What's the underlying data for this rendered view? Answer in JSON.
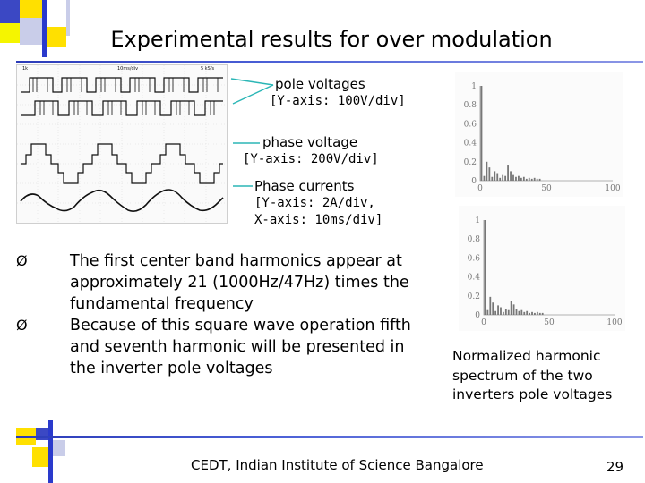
{
  "slide": {
    "title": "Experimental results for over modulation",
    "footer": "CEDT, Indian Institute of Science Bangalore",
    "page_number": "29"
  },
  "labels": {
    "pole_title": "pole voltages",
    "pole_axis": "[Y-axis: 100V/div]",
    "phase_title": "phase voltage",
    "phase_axis": "[Y-axis: 200V/div]",
    "current_title": "Phase currents",
    "current_axis_y": "[Y-axis: 2A/div,",
    "current_axis_x": "X-axis: 10ms/div]"
  },
  "bullets": [
    {
      "marker": "Ø",
      "text": "The first center band harmonics appear at approximately 21 (1000Hz/47Hz) times the fundamental frequency"
    },
    {
      "marker": "Ø",
      "text": "Because of this square wave operation fifth and seventh harmonic will be presented in the inverter pole voltages"
    }
  ],
  "caption": "Normalized harmonic spectrum of the two inverters pole voltages",
  "chart_data": [
    {
      "type": "bar",
      "ylim": [
        0,
        1
      ],
      "xlim": [
        0,
        100
      ],
      "yticks": [
        "0",
        "0.2",
        "0.4",
        "0.6",
        "0.8",
        "1"
      ],
      "xticks": [
        "0",
        "50",
        "100"
      ],
      "x": [
        1,
        3,
        5,
        7,
        9,
        11,
        13,
        15,
        17,
        19,
        21,
        23,
        25,
        27,
        29,
        31,
        33,
        35,
        37,
        39,
        41,
        43,
        45
      ],
      "values": [
        1.0,
        0.05,
        0.2,
        0.14,
        0.04,
        0.1,
        0.08,
        0.03,
        0.06,
        0.05,
        0.16,
        0.1,
        0.06,
        0.04,
        0.05,
        0.03,
        0.04,
        0.02,
        0.03,
        0.02,
        0.03,
        0.02,
        0.02
      ]
    },
    {
      "type": "bar",
      "ylim": [
        0,
        1
      ],
      "xlim": [
        0,
        100
      ],
      "yticks": [
        "0",
        "0.2",
        "0.4",
        "0.6",
        "0.8",
        "1"
      ],
      "xticks": [
        "0",
        "50",
        "100"
      ],
      "x": [
        1,
        3,
        5,
        7,
        9,
        11,
        13,
        15,
        17,
        19,
        21,
        23,
        25,
        27,
        29,
        31,
        33,
        35,
        37,
        39,
        41,
        43,
        45
      ],
      "values": [
        1.0,
        0.05,
        0.19,
        0.13,
        0.04,
        0.1,
        0.08,
        0.03,
        0.06,
        0.05,
        0.15,
        0.11,
        0.06,
        0.04,
        0.05,
        0.03,
        0.04,
        0.02,
        0.03,
        0.02,
        0.03,
        0.02,
        0.02
      ]
    }
  ]
}
